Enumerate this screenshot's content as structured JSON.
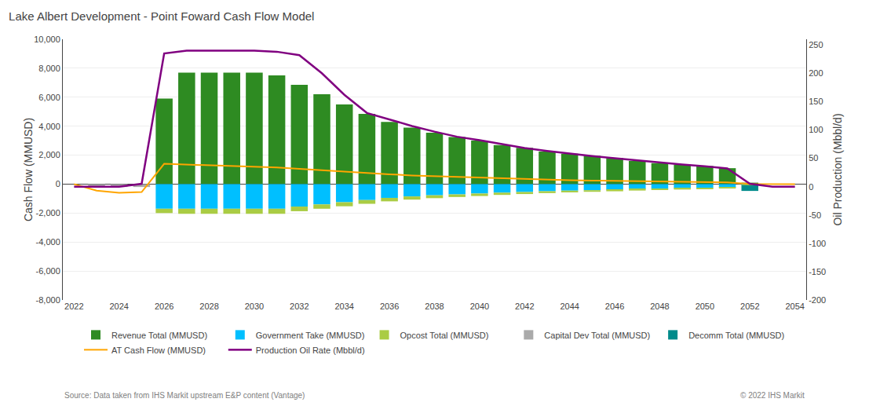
{
  "chart_data": {
    "type": "bar",
    "title": "Lake Albert Development - Point Foward Cash Flow Model",
    "ylabel": "Cash Flow (MMUSD)",
    "y2label": "Oil Production (Mbbl/d)",
    "annotations": [
      "Source: Data taken from IHS Markit upstream E&P content (Vantage)",
      "© 2022 IHS Markit"
    ],
    "categories": [
      "2022",
      null,
      "2024",
      null,
      "2026",
      null,
      "2028",
      null,
      "2030",
      null,
      "2032",
      null,
      "2034",
      null,
      "2036",
      null,
      "2038",
      null,
      "2040",
      null,
      "2042",
      null,
      "2044",
      null,
      "2046",
      null,
      "2048",
      null,
      "2050",
      null,
      "2052",
      null,
      "2054"
    ],
    "stacked": true,
    "grid": true,
    "legend": "bottom",
    "ylim": [
      -8000,
      10000
    ],
    "yticks": [
      {
        "value": -8000,
        "label": "-8,000"
      },
      {
        "value": -6000,
        "label": "-6,000"
      },
      {
        "value": -4000,
        "label": "-4,000"
      },
      {
        "value": -2000,
        "label": "-2,000"
      },
      0,
      {
        "value": 2000,
        "label": "2,000"
      },
      {
        "value": 4000,
        "label": "4,000"
      },
      {
        "value": 6000,
        "label": "6,000"
      },
      {
        "value": 8000,
        "label": "8,000"
      },
      {
        "value": 10000,
        "label": "10,000"
      }
    ],
    "y2lim": [
      -200,
      260
    ],
    "y2ticks": [
      -200,
      -150,
      -100,
      -50,
      0,
      50,
      100,
      150,
      200,
      250
    ],
    "series": [
      {
        "name": "Revenue Total (MMUSD)",
        "type": "bar",
        "color": "#2E8B22",
        "values": [
          0,
          0,
          0,
          0,
          5900,
          7700,
          7700,
          7700,
          7700,
          7500,
          6850,
          6200,
          5500,
          4850,
          4300,
          3900,
          3550,
          3250,
          3000,
          2700,
          2500,
          2250,
          2100,
          1950,
          1800,
          1600,
          1450,
          1350,
          1250,
          1100,
          100,
          0,
          0
        ]
      },
      {
        "name": "Government Take (MMUSD)",
        "type": "bar",
        "color": "#00BFFF",
        "values": [
          0,
          0,
          0,
          0,
          -1700,
          -1700,
          -1700,
          -1700,
          -1700,
          -1700,
          -1550,
          -1400,
          -1250,
          -1100,
          -950,
          -850,
          -770,
          -710,
          -650,
          -590,
          -545,
          -490,
          -450,
          -420,
          -390,
          -350,
          -320,
          -295,
          -270,
          -240,
          -50,
          0,
          0
        ]
      },
      {
        "name": "Opcost Total (MMUSD)",
        "type": "bar",
        "color": "#AACC44",
        "values": [
          0,
          0,
          0,
          0,
          -300,
          -350,
          -350,
          -350,
          -350,
          -350,
          -320,
          -300,
          -280,
          -260,
          -240,
          -220,
          -200,
          -180,
          -170,
          -155,
          -140,
          -130,
          -120,
          -110,
          -105,
          -95,
          -85,
          -80,
          -75,
          -65,
          -20,
          0,
          0
        ]
      },
      {
        "name": "Capital Dev Total (MMUSD)",
        "type": "bar",
        "color": "#AAAAAA",
        "values": [
          0,
          -150,
          -200,
          -200,
          0,
          0,
          0,
          0,
          0,
          0,
          0,
          0,
          0,
          0,
          0,
          0,
          0,
          0,
          0,
          0,
          0,
          0,
          0,
          0,
          0,
          0,
          0,
          0,
          0,
          0,
          0,
          0,
          0
        ]
      },
      {
        "name": "Decomm Total (MMUSD)",
        "type": "bar",
        "color": "#008B8B",
        "values": [
          0,
          0,
          0,
          0,
          0,
          0,
          0,
          0,
          0,
          0,
          0,
          0,
          0,
          0,
          0,
          0,
          0,
          0,
          0,
          0,
          0,
          0,
          0,
          0,
          0,
          0,
          0,
          0,
          0,
          0,
          -400,
          0,
          0
        ]
      },
      {
        "name": "AT Cash Flow (MMUSD)",
        "type": "line",
        "color": "#FFA500",
        "values": [
          0,
          -450,
          -600,
          -550,
          1400,
          1350,
          1300,
          1250,
          1200,
          1150,
          1050,
          950,
          850,
          750,
          680,
          600,
          550,
          490,
          440,
          380,
          340,
          300,
          270,
          245,
          220,
          195,
          175,
          160,
          145,
          120,
          10,
          0,
          0
        ]
      },
      {
        "name": "Production Oil Rate (Mbbl/d)",
        "type": "line",
        "axis": "y2",
        "color": "#800080",
        "values": [
          0,
          0,
          0,
          5,
          235,
          240,
          240,
          240,
          240,
          238,
          232,
          200,
          162,
          130,
          118,
          107,
          97,
          88,
          82,
          75,
          68,
          63,
          58,
          54,
          50,
          46,
          42,
          39,
          36,
          32,
          5,
          0,
          0
        ]
      }
    ]
  }
}
